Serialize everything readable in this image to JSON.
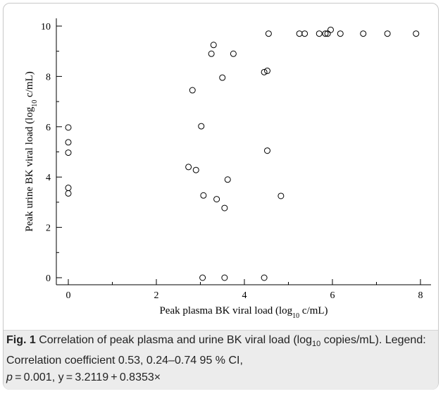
{
  "chart_data": {
    "type": "scatter",
    "xlabel": {
      "prefix": "Peak plasma BK viral load (log",
      "sub": "10",
      "suffix": " c/mL)"
    },
    "ylabel": {
      "prefix": "Peak urine BK viral load (log",
      "sub": "10",
      "suffix": " c/mL)"
    },
    "xlim": [
      0,
      8.3
    ],
    "ylim": [
      0,
      10
    ],
    "xticks": [
      0,
      2,
      4,
      6,
      8
    ],
    "yticks": [
      0,
      2,
      4,
      6,
      8,
      10
    ],
    "grid": false,
    "legend": "none",
    "points": [
      {
        "x": 0.0,
        "y": 5.97
      },
      {
        "x": 0.0,
        "y": 5.38
      },
      {
        "x": 0.0,
        "y": 4.97
      },
      {
        "x": 0.0,
        "y": 3.57
      },
      {
        "x": 0.0,
        "y": 3.35
      },
      {
        "x": 2.73,
        "y": 4.4
      },
      {
        "x": 2.82,
        "y": 7.45
      },
      {
        "x": 2.9,
        "y": 4.28
      },
      {
        "x": 3.02,
        "y": 6.02
      },
      {
        "x": 3.05,
        "y": 0.0
      },
      {
        "x": 3.07,
        "y": 3.27
      },
      {
        "x": 3.25,
        "y": 8.9
      },
      {
        "x": 3.3,
        "y": 9.25
      },
      {
        "x": 3.37,
        "y": 3.12
      },
      {
        "x": 3.5,
        "y": 7.95
      },
      {
        "x": 3.55,
        "y": 2.77
      },
      {
        "x": 3.55,
        "y": 0.0
      },
      {
        "x": 3.62,
        "y": 3.9
      },
      {
        "x": 3.75,
        "y": 8.9
      },
      {
        "x": 4.45,
        "y": 8.17
      },
      {
        "x": 4.45,
        "y": 0.0
      },
      {
        "x": 4.52,
        "y": 8.22
      },
      {
        "x": 4.52,
        "y": 5.05
      },
      {
        "x": 4.55,
        "y": 9.7
      },
      {
        "x": 4.83,
        "y": 3.25
      },
      {
        "x": 5.25,
        "y": 9.7
      },
      {
        "x": 5.37,
        "y": 9.7
      },
      {
        "x": 5.7,
        "y": 9.7
      },
      {
        "x": 5.84,
        "y": 9.7
      },
      {
        "x": 5.89,
        "y": 9.7
      },
      {
        "x": 5.96,
        "y": 9.85
      },
      {
        "x": 6.18,
        "y": 9.7
      },
      {
        "x": 6.7,
        "y": 9.7
      },
      {
        "x": 7.25,
        "y": 9.7
      },
      {
        "x": 7.9,
        "y": 9.7
      }
    ]
  },
  "caption": {
    "fig_label": "Fig. 1",
    "text1": " Correlation of peak plasma and urine BK viral load (log",
    "sub": "10",
    "text2": " copies/mL). Legend: Correlation coefficient 0.53, 0.24–0.74 95 % CI,",
    "p_var": "p",
    "text3": " = 0.001, y = 3.2119 + 0.8353×"
  }
}
